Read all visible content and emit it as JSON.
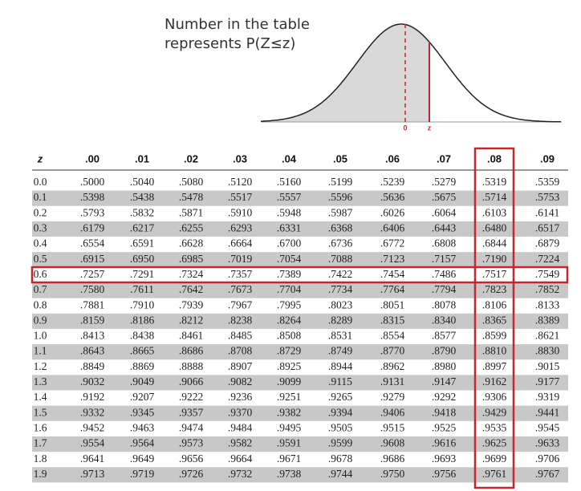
{
  "header": {
    "title_lines": [
      "Number in the table",
      "represents P(Z≤z)"
    ],
    "curve_labels": [
      "0",
      "z"
    ]
  },
  "table": {
    "header": [
      "z",
      ".00",
      ".01",
      ".02",
      ".03",
      ".04",
      ".05",
      ".06",
      ".07",
      ".08",
      ".09"
    ],
    "rows": [
      [
        "0.0",
        ".5000",
        ".5040",
        ".5080",
        ".5120",
        ".5160",
        ".5199",
        ".5239",
        ".5279",
        ".5319",
        ".5359"
      ],
      [
        "0.1",
        ".5398",
        ".5438",
        ".5478",
        ".5517",
        ".5557",
        ".5596",
        ".5636",
        ".5675",
        ".5714",
        ".5753"
      ],
      [
        "0.2",
        ".5793",
        ".5832",
        ".5871",
        ".5910",
        ".5948",
        ".5987",
        ".6026",
        ".6064",
        ".6103",
        ".6141"
      ],
      [
        "0.3",
        ".6179",
        ".6217",
        ".6255",
        ".6293",
        ".6331",
        ".6368",
        ".6406",
        ".6443",
        ".6480",
        ".6517"
      ],
      [
        "0.4",
        ".6554",
        ".6591",
        ".6628",
        ".6664",
        ".6700",
        ".6736",
        ".6772",
        ".6808",
        ".6844",
        ".6879"
      ],
      [
        "0.5",
        ".6915",
        ".6950",
        ".6985",
        ".7019",
        ".7054",
        ".7088",
        ".7123",
        ".7157",
        ".7190",
        ".7224"
      ],
      [
        "0.6",
        ".7257",
        ".7291",
        ".7324",
        ".7357",
        ".7389",
        ".7422",
        ".7454",
        ".7486",
        ".7517",
        ".7549"
      ],
      [
        "0.7",
        ".7580",
        ".7611",
        ".7642",
        ".7673",
        ".7704",
        ".7734",
        ".7764",
        ".7794",
        ".7823",
        ".7852"
      ],
      [
        "0.8",
        ".7881",
        ".7910",
        ".7939",
        ".7967",
        ".7995",
        ".8023",
        ".8051",
        ".8078",
        ".8106",
        ".8133"
      ],
      [
        "0.9",
        ".8159",
        ".8186",
        ".8212",
        ".8238",
        ".8264",
        ".8289",
        ".8315",
        ".8340",
        ".8365",
        ".8389"
      ],
      [
        "1.0",
        ".8413",
        ".8438",
        ".8461",
        ".8485",
        ".8508",
        ".8531",
        ".8554",
        ".8577",
        ".8599",
        ".8621"
      ],
      [
        "1.1",
        ".8643",
        ".8665",
        ".8686",
        ".8708",
        ".8729",
        ".8749",
        ".8770",
        ".8790",
        ".8810",
        ".8830"
      ],
      [
        "1.2",
        ".8849",
        ".8869",
        ".8888",
        ".8907",
        ".8925",
        ".8944",
        ".8962",
        ".8980",
        ".8997",
        ".9015"
      ],
      [
        "1.3",
        ".9032",
        ".9049",
        ".9066",
        ".9082",
        ".9099",
        ".9115",
        ".9131",
        ".9147",
        ".9162",
        ".9177"
      ],
      [
        "1.4",
        ".9192",
        ".9207",
        ".9222",
        ".9236",
        ".9251",
        ".9265",
        ".9279",
        ".9292",
        ".9306",
        ".9319"
      ],
      [
        "1.5",
        ".9332",
        ".9345",
        ".9357",
        ".9370",
        ".9382",
        ".9394",
        ".9406",
        ".9418",
        ".9429",
        ".9441"
      ],
      [
        "1.6",
        ".9452",
        ".9463",
        ".9474",
        ".9484",
        ".9495",
        ".9505",
        ".9515",
        ".9525",
        ".9535",
        ".9545"
      ],
      [
        "1.7",
        ".9554",
        ".9564",
        ".9573",
        ".9582",
        ".9591",
        ".9599",
        ".9608",
        ".9616",
        ".9625",
        ".9633"
      ],
      [
        "1.8",
        ".9641",
        ".9649",
        ".9656",
        ".9664",
        ".9671",
        ".9678",
        ".9686",
        ".9693",
        ".9699",
        ".9706"
      ],
      [
        "1.9",
        ".9713",
        ".9719",
        ".9726",
        ".9732",
        ".9738",
        ".9744",
        ".9750",
        ".9756",
        ".9761",
        ".9767"
      ]
    ]
  }
}
